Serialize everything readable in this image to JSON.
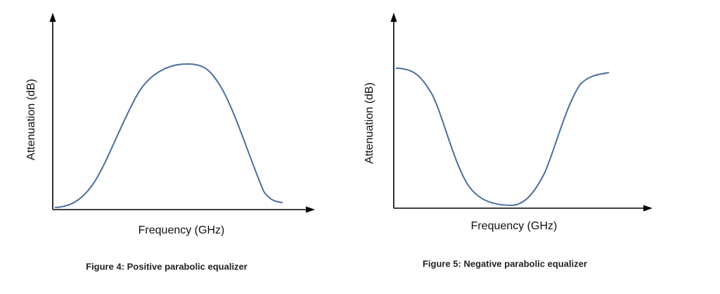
{
  "figures": [
    {
      "y_axis_label": "Attenuation (dB)",
      "x_axis_label": "Frequency (GHz)",
      "caption": "Figure 4: Positive parabolic equalizer"
    },
    {
      "y_axis_label": "Attenuation (dB)",
      "x_axis_label": "Frequency (GHz)",
      "caption": "Figure 5: Negative parabolic equalizer"
    }
  ]
}
